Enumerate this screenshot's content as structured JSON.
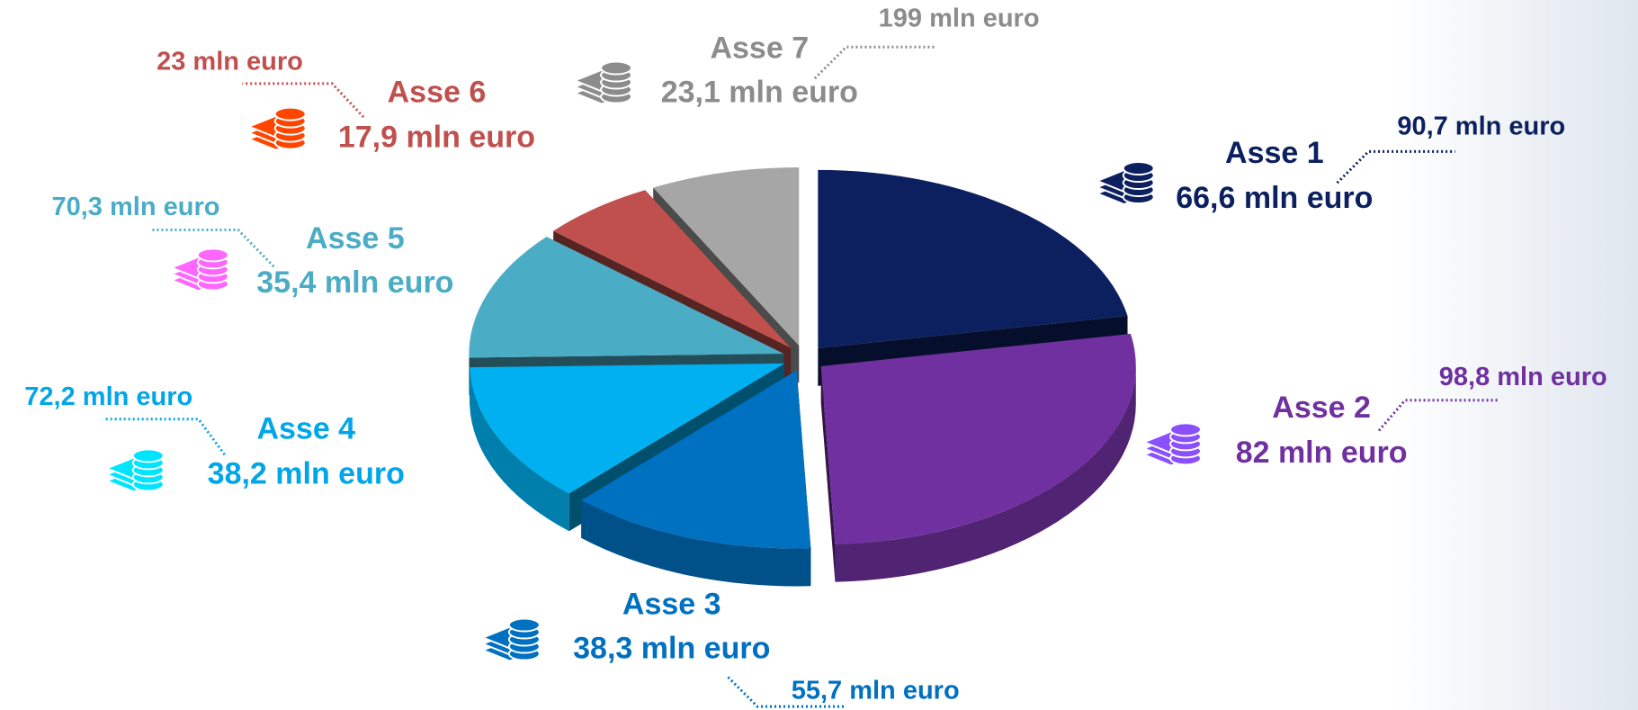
{
  "chart_data": {
    "type": "pie",
    "categories": [
      "Asse 1",
      "Asse 2",
      "Asse 3",
      "Asse 4",
      "Asse 5",
      "Asse 6",
      "Asse 7"
    ],
    "values": [
      66.6,
      82,
      38.3,
      38.2,
      35.4,
      17.9,
      23.1
    ],
    "value_labels": [
      "66,6 mln euro",
      "82 mln euro",
      "38,3 mln euro",
      "38,2 mln euro",
      "35,4 mln euro",
      "17,9 mln euro",
      "23,1 mln euro"
    ],
    "annotations": [
      "90,7 mln euro",
      "98,8 mln euro",
      "55,7 mln euro",
      "72,2 mln euro",
      "70,3 mln euro",
      "23 mln euro",
      "199 mln euro"
    ],
    "colors": [
      "#0c1f5e",
      "#7030a0",
      "#0070c0",
      "#00b0f0",
      "#4bacc6",
      "#c0504d",
      "#a6a6a6"
    ]
  }
}
